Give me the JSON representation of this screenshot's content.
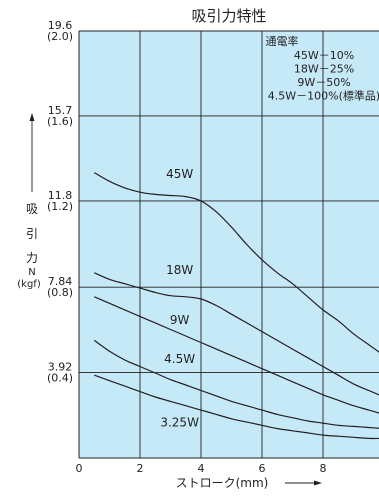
{
  "chart_data": {
    "type": "line",
    "title": "吸引力特性",
    "xlabel": "ストローク(mm)",
    "ylabel": [
      "吸",
      "引",
      "力"
    ],
    "ylabel_unit": [
      "N",
      "(kgf)"
    ],
    "xlim": [
      0,
      10
    ],
    "ylim": [
      0,
      19.6
    ],
    "x_ticks": [
      {
        "value": 0,
        "label": "0"
      },
      {
        "value": 2,
        "label": "2"
      },
      {
        "value": 4,
        "label": "4"
      },
      {
        "value": 6,
        "label": "6"
      },
      {
        "value": 8,
        "label": "8"
      }
    ],
    "y_ticks": [
      {
        "value": 3.92,
        "label": "3.92",
        "sublabel": "(0.4)"
      },
      {
        "value": 7.84,
        "label": "7.84",
        "sublabel": "(0.8)"
      },
      {
        "value": 11.8,
        "label": "11.8",
        "sublabel": "(1.2)"
      },
      {
        "value": 15.7,
        "label": "15.7",
        "sublabel": "(1.6)"
      },
      {
        "value": 19.6,
        "label": "19.6",
        "sublabel": "(2.0)"
      }
    ],
    "grid": true,
    "legend": {
      "title": "通電率",
      "entries": [
        "45W－10%",
        "18W－25%",
        "9W－50%",
        "4.5W－100%(標準品)"
      ]
    },
    "series": [
      {
        "name": "45W",
        "x": [
          0.5,
          1.0,
          1.5,
          2.0,
          2.5,
          3.0,
          3.5,
          4.0,
          4.5,
          5.0,
          5.5,
          6.0,
          6.5,
          7.0,
          7.5,
          8.0,
          8.5,
          9.0,
          9.5,
          10.0
        ],
        "values": [
          13.1,
          12.7,
          12.4,
          12.2,
          12.1,
          12.05,
          12.0,
          11.8,
          11.3,
          10.6,
          9.8,
          9.1,
          8.5,
          8.0,
          7.4,
          6.8,
          6.3,
          5.7,
          5.2,
          4.7
        ]
      },
      {
        "name": "18W",
        "x": [
          0.5,
          1.0,
          1.5,
          2.0,
          2.5,
          3.0,
          3.5,
          4.0,
          4.5,
          5.0,
          5.5,
          6.0,
          6.5,
          7.0,
          7.5,
          8.0,
          8.5,
          9.0,
          9.5,
          10.0
        ],
        "values": [
          8.5,
          8.2,
          8.0,
          7.8,
          7.6,
          7.45,
          7.4,
          7.3,
          7.0,
          6.6,
          6.2,
          5.8,
          5.4,
          5.0,
          4.6,
          4.2,
          3.8,
          3.4,
          3.1,
          2.8
        ]
      },
      {
        "name": "9W",
        "x": [
          0.5,
          1.0,
          1.5,
          2.0,
          2.5,
          3.0,
          3.5,
          4.0,
          4.5,
          5.0,
          5.5,
          6.0,
          6.5,
          7.0,
          7.5,
          8.0,
          8.5,
          9.0,
          9.5,
          10.0
        ],
        "values": [
          7.4,
          7.1,
          6.8,
          6.5,
          6.2,
          5.9,
          5.6,
          5.3,
          5.0,
          4.7,
          4.4,
          4.1,
          3.8,
          3.5,
          3.2,
          2.9,
          2.65,
          2.4,
          2.2,
          2.0
        ]
      },
      {
        "name": "4.5W",
        "x": [
          0.5,
          1.0,
          1.5,
          2.0,
          2.5,
          3.0,
          3.5,
          4.0,
          4.5,
          5.0,
          5.5,
          6.0,
          6.5,
          7.0,
          7.5,
          8.0,
          8.5,
          9.0,
          9.5,
          10.0
        ],
        "values": [
          5.4,
          4.9,
          4.5,
          4.2,
          3.9,
          3.6,
          3.35,
          3.1,
          2.85,
          2.6,
          2.4,
          2.2,
          2.0,
          1.85,
          1.7,
          1.6,
          1.5,
          1.45,
          1.4,
          1.35
        ]
      },
      {
        "name": "3.25W",
        "x": [
          0.5,
          1.0,
          1.5,
          2.0,
          2.5,
          3.0,
          3.5,
          4.0,
          4.5,
          5.0,
          5.5,
          6.0,
          6.5,
          7.0,
          7.5,
          8.0,
          8.5,
          9.0,
          9.5,
          10.0
        ],
        "values": [
          3.8,
          3.55,
          3.3,
          3.05,
          2.8,
          2.6,
          2.4,
          2.2,
          2.0,
          1.8,
          1.65,
          1.5,
          1.35,
          1.25,
          1.15,
          1.05,
          1.0,
          0.95,
          0.9,
          0.9
        ]
      }
    ],
    "series_labels": [
      {
        "text": "45W",
        "x": 3.3,
        "y": 12.85
      },
      {
        "text": "18W",
        "x": 3.3,
        "y": 8.45
      },
      {
        "text": "9W",
        "x": 3.3,
        "y": 6.15
      },
      {
        "text": "4.5W",
        "x": 3.3,
        "y": 4.35
      },
      {
        "text": "3.25W",
        "x": 3.3,
        "y": 1.45
      }
    ]
  },
  "colors": {
    "plot_background": "#c6e9f8",
    "grid": "#231f20",
    "line": "#231f20",
    "text": "#231f20"
  }
}
